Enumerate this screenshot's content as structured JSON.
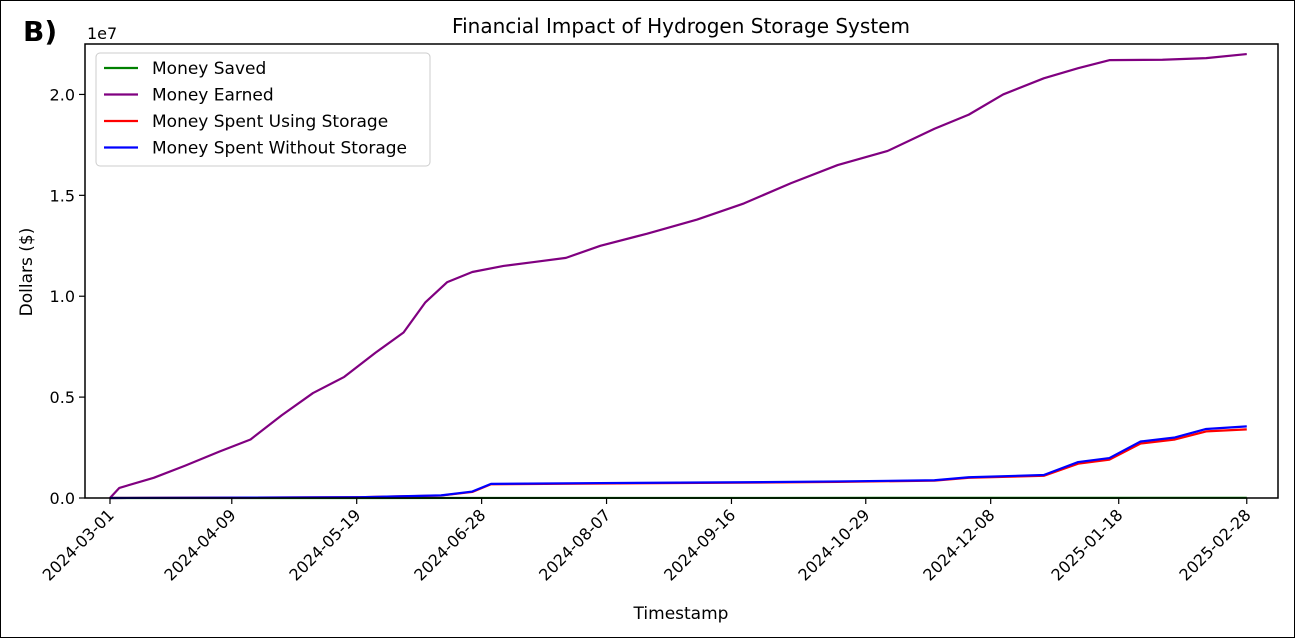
{
  "panel_label": "B)",
  "chart_data": {
    "type": "line",
    "title": "Financial Impact of Hydrogen Storage System",
    "xlabel": "Timestamp",
    "ylabel": "Dollars ($)",
    "y_offset_label": "1e7",
    "y_scale": 10000000,
    "ylim": [
      -1.1e-06,
      22.5
    ],
    "y_ticks": [
      0.0,
      0.5,
      1.0,
      1.5,
      2.0
    ],
    "y_tick_labels": [
      "0.0",
      "0.5",
      "1.0",
      "1.5",
      "2.0"
    ],
    "xlim": [
      "2024-02-22",
      "2025-03-10"
    ],
    "x_ticks": [
      "2024-03-01",
      "2024-04-09",
      "2024-05-19",
      "2024-06-28",
      "2024-08-07",
      "2024-09-16",
      "2024-10-29",
      "2024-12-08",
      "2025-01-18",
      "2025-02-28"
    ],
    "grid": false,
    "legend_position": "upper-left",
    "series": [
      {
        "name": "Money Saved",
        "color": "#008000",
        "points": [
          [
            "2024-03-01",
            0.0
          ],
          [
            "2024-06-28",
            0.002
          ],
          [
            "2024-09-16",
            0.004
          ],
          [
            "2024-12-08",
            0.006
          ],
          [
            "2025-01-18",
            0.008
          ],
          [
            "2025-02-28",
            0.01
          ]
        ]
      },
      {
        "name": "Money Earned",
        "color": "#800080",
        "points": [
          [
            "2024-03-01",
            0.0
          ],
          [
            "2024-03-04",
            0.5
          ],
          [
            "2024-03-15",
            1.0
          ],
          [
            "2024-03-25",
            1.6
          ],
          [
            "2024-04-05",
            2.3
          ],
          [
            "2024-04-15",
            2.9
          ],
          [
            "2024-04-25",
            4.1
          ],
          [
            "2024-05-05",
            5.2
          ],
          [
            "2024-05-15",
            6.0
          ],
          [
            "2024-05-25",
            7.2
          ],
          [
            "2024-06-03",
            8.2
          ],
          [
            "2024-06-10",
            9.7
          ],
          [
            "2024-06-17",
            10.7
          ],
          [
            "2024-06-25",
            11.2
          ],
          [
            "2024-07-05",
            11.5
          ],
          [
            "2024-07-15",
            11.7
          ],
          [
            "2024-07-25",
            11.9
          ],
          [
            "2024-08-05",
            12.5
          ],
          [
            "2024-08-20",
            13.1
          ],
          [
            "2024-09-05",
            13.8
          ],
          [
            "2024-09-20",
            14.6
          ],
          [
            "2024-10-05",
            15.6
          ],
          [
            "2024-10-20",
            16.5
          ],
          [
            "2024-11-05",
            17.2
          ],
          [
            "2024-11-20",
            18.3
          ],
          [
            "2024-12-01",
            19.0
          ],
          [
            "2024-12-12",
            20.0
          ],
          [
            "2024-12-25",
            20.8
          ],
          [
            "2025-01-05",
            21.3
          ],
          [
            "2025-01-15",
            21.7
          ],
          [
            "2025-02-01",
            21.72
          ],
          [
            "2025-02-15",
            21.8
          ],
          [
            "2025-02-28",
            22.0
          ]
        ]
      },
      {
        "name": "Money Spent Using Storage",
        "color": "#ff0000",
        "points": [
          [
            "2024-03-01",
            0.0
          ],
          [
            "2024-04-15",
            0.02
          ],
          [
            "2024-05-20",
            0.04
          ],
          [
            "2024-06-15",
            0.12
          ],
          [
            "2024-06-25",
            0.3
          ],
          [
            "2024-07-01",
            0.68
          ],
          [
            "2024-08-05",
            0.72
          ],
          [
            "2024-09-20",
            0.76
          ],
          [
            "2024-10-20",
            0.8
          ],
          [
            "2024-11-20",
            0.86
          ],
          [
            "2024-12-01",
            1.0
          ],
          [
            "2024-12-25",
            1.1
          ],
          [
            "2025-01-05",
            1.7
          ],
          [
            "2025-01-15",
            1.9
          ],
          [
            "2025-01-25",
            2.7
          ],
          [
            "2025-02-05",
            2.9
          ],
          [
            "2025-02-15",
            3.3
          ],
          [
            "2025-02-28",
            3.4
          ]
        ]
      },
      {
        "name": "Money Spent Without Storage",
        "color": "#0000ff",
        "points": [
          [
            "2024-03-01",
            0.0
          ],
          [
            "2024-04-15",
            0.02
          ],
          [
            "2024-05-20",
            0.04
          ],
          [
            "2024-06-15",
            0.13
          ],
          [
            "2024-06-25",
            0.32
          ],
          [
            "2024-07-01",
            0.7
          ],
          [
            "2024-08-05",
            0.74
          ],
          [
            "2024-09-20",
            0.78
          ],
          [
            "2024-10-20",
            0.82
          ],
          [
            "2024-11-20",
            0.88
          ],
          [
            "2024-12-01",
            1.03
          ],
          [
            "2024-12-25",
            1.14
          ],
          [
            "2025-01-05",
            1.78
          ],
          [
            "2025-01-15",
            1.98
          ],
          [
            "2025-01-25",
            2.8
          ],
          [
            "2025-02-05",
            3.0
          ],
          [
            "2025-02-15",
            3.42
          ],
          [
            "2025-02-28",
            3.55
          ]
        ]
      }
    ]
  }
}
